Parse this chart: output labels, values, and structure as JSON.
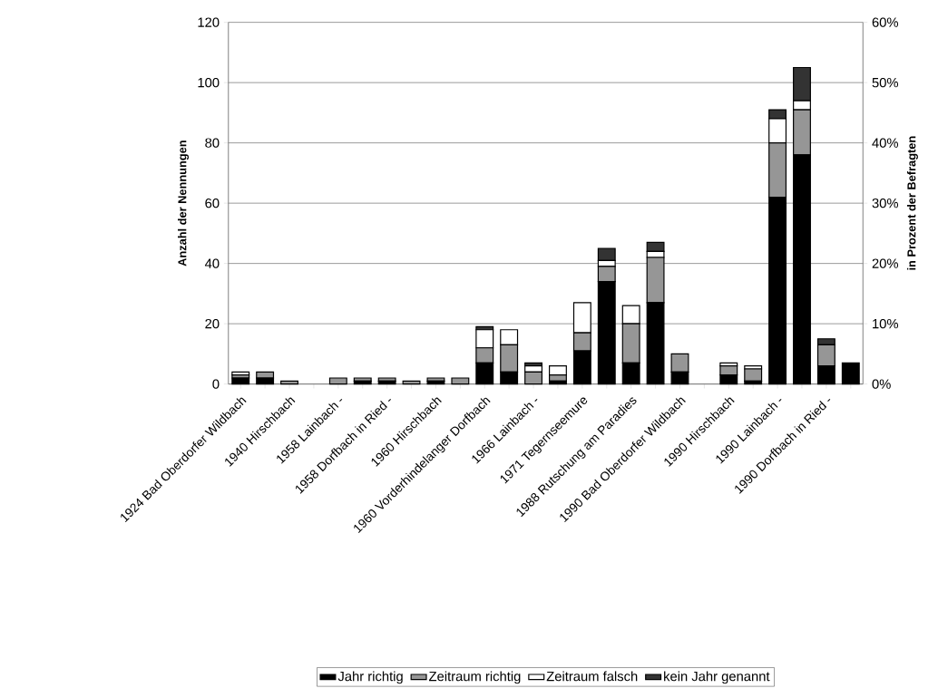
{
  "chart_data": {
    "type": "bar",
    "stacked": true,
    "ylabel": "Anzahl der Nennungen",
    "y2label": "in Prozent der Befragten",
    "categories": [
      "1924 Bad Oberdorfer Wildbach",
      null,
      "1940 Hirschbach",
      null,
      "1958 Lainbach -",
      null,
      "1958 Dorfbach in Ried -",
      null,
      "1960 Hirschbach",
      null,
      "1960 Vorderhindelanger Dorfbach",
      null,
      "1966 Lainbach -",
      null,
      "1971 Tegernseemure",
      null,
      "1988 Rutschung am Paradies",
      null,
      "1990 Bad Oberdorfer Wildbach",
      null,
      "1990 Hirschbach",
      null,
      "1990 Lainbach -",
      null,
      "1990 Dorfbach in Ried -",
      null
    ],
    "series": [
      {
        "name": "Jahr richtig",
        "color": "#000000",
        "values": [
          2,
          2,
          0,
          0,
          0,
          1,
          1,
          0,
          1,
          0,
          7,
          4,
          0,
          1,
          11,
          34,
          7,
          27,
          4,
          0,
          3,
          1,
          62,
          76,
          6,
          7
        ]
      },
      {
        "name": "Zeitraum richtig",
        "color": "#969696",
        "values": [
          1,
          2,
          1,
          0,
          2,
          1,
          1,
          1,
          1,
          2,
          5,
          9,
          4,
          2,
          6,
          5,
          13,
          15,
          6,
          0,
          3,
          4,
          18,
          15,
          7,
          0
        ]
      },
      {
        "name": "Zeitraum falsch",
        "color": "#ffffff",
        "values": [
          1,
          0,
          0,
          0,
          0,
          0,
          0,
          0,
          0,
          0,
          6,
          5,
          2,
          3,
          10,
          2,
          6,
          2,
          0,
          0,
          1,
          1,
          8,
          3,
          0,
          0
        ]
      },
      {
        "name": "kein Jahr genannt",
        "color": "#333333",
        "values": [
          0,
          0,
          0,
          0,
          0,
          0,
          0,
          0,
          0,
          0,
          1,
          0,
          1,
          0,
          0,
          4,
          0,
          3,
          0,
          0,
          0,
          0,
          3,
          11,
          2,
          0
        ]
      }
    ],
    "ylim": [
      0,
      120
    ],
    "yticks": [
      0,
      20,
      40,
      60,
      80,
      100,
      120
    ],
    "y2lim": [
      0,
      60
    ],
    "y2ticks": [
      {
        "value": 0,
        "label": "0%"
      },
      {
        "value": 10,
        "label": "10%"
      },
      {
        "value": 20,
        "label": "20%"
      },
      {
        "value": 30,
        "label": "30%"
      },
      {
        "value": 40,
        "label": "40%"
      },
      {
        "value": 50,
        "label": "50%"
      },
      {
        "value": 60,
        "label": "60%"
      }
    ],
    "grid": "y",
    "legend": "bottom"
  }
}
